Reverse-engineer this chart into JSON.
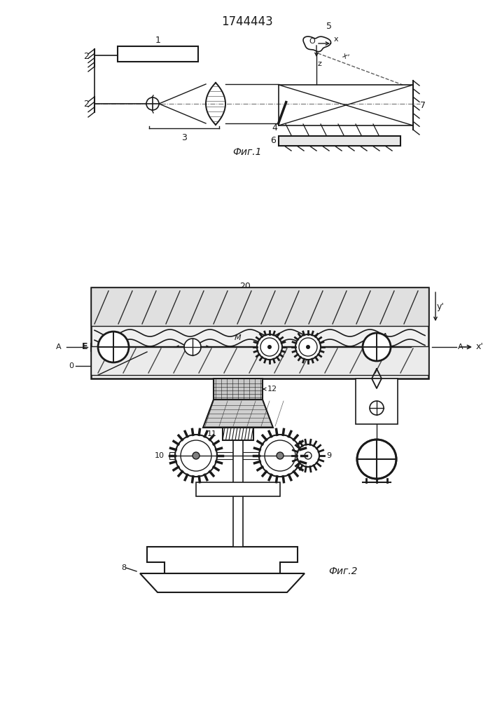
{
  "title": "1744443",
  "fig1_label": "Фиг.1",
  "fig2_label": "Фиг.2",
  "fig2_num": "20",
  "bg_color": "#ffffff",
  "lc": "#1a1a1a",
  "lc_light": "#555555"
}
